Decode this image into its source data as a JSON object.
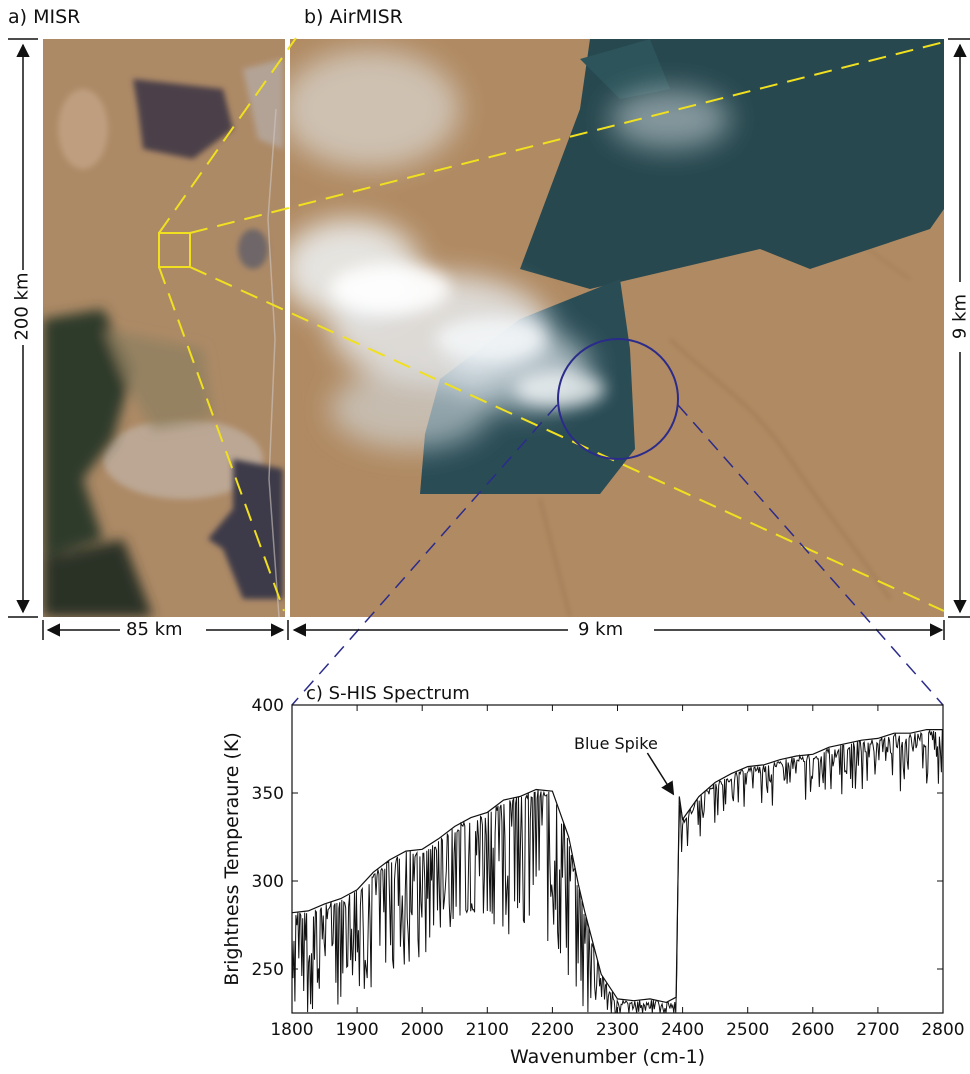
{
  "panels": {
    "a": {
      "label": "a) MISR"
    },
    "b": {
      "label": "b) AirMISR"
    },
    "c": {
      "label": "c) S-HIS Spectrum"
    }
  },
  "dimensions": {
    "misr_height": "200 km",
    "misr_width": "85 km",
    "airmisr_height": "9 km",
    "airmisr_width": "9 km"
  },
  "colors": {
    "terrain": "#b08a62",
    "burn_scar": "#27494f",
    "smoke": "#e8eef2",
    "zoom_lines": "#f0e020",
    "circle": "#2b2b8c",
    "spectrum": "#111111"
  },
  "chart_data": {
    "type": "line",
    "title": "c) S-HIS Spectrum",
    "xlabel": "Wavenumber (cm-1)",
    "ylabel": "Brightness Temperaure (K)",
    "xlim": [
      1800,
      2800
    ],
    "ylim": [
      225,
      400
    ],
    "xticks": [
      1800,
      1900,
      2000,
      2100,
      2200,
      2300,
      2400,
      2500,
      2600,
      2700,
      2800
    ],
    "yticks": [
      250,
      300,
      350,
      400
    ],
    "annotation": {
      "text": "Blue Spike",
      "x": 2392,
      "y": 347
    },
    "series": [
      {
        "x": [
          1800,
          1825,
          1850,
          1875,
          1900,
          1925,
          1950,
          1975,
          2000,
          2025,
          2050,
          2075,
          2100,
          2125,
          2150,
          2175,
          2200,
          2225,
          2240,
          2250,
          2275,
          2300,
          2325,
          2350,
          2375,
          2390,
          2395,
          2400,
          2425,
          2450,
          2475,
          2500,
          2525,
          2550,
          2575,
          2600,
          2625,
          2650,
          2675,
          2700,
          2725,
          2750,
          2775,
          2800
        ],
        "upper": [
          282,
          283,
          287,
          290,
          295,
          305,
          312,
          317,
          318,
          324,
          331,
          336,
          339,
          346,
          348,
          352,
          351,
          325,
          298,
          282,
          247,
          233,
          232,
          233,
          231,
          234,
          348,
          335,
          348,
          356,
          361,
          365,
          366,
          369,
          371,
          372,
          376,
          378,
          380,
          381,
          384,
          384,
          386,
          386
        ],
        "lower": [
          250,
          245,
          248,
          250,
          255,
          258,
          262,
          268,
          272,
          280,
          285,
          290,
          292,
          290,
          288,
          286,
          280,
          262,
          250,
          244,
          232,
          228,
          226,
          226,
          226,
          228,
          344,
          331,
          344,
          352,
          357,
          360,
          361,
          359,
          360,
          364,
          370,
          366,
          371,
          369,
          370,
          372,
          373,
          374
        ]
      }
    ]
  }
}
